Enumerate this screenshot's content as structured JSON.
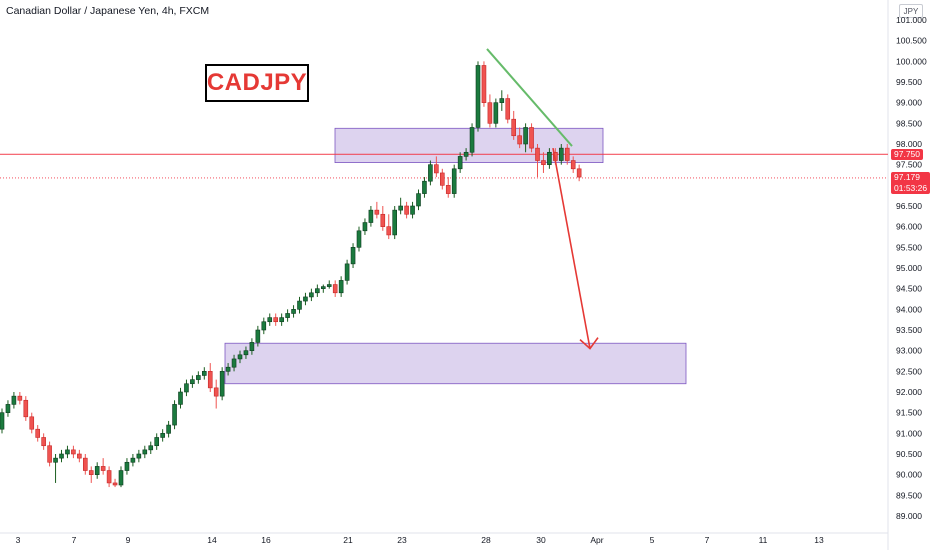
{
  "header": {
    "title": "Canadian Dollar / Japanese Yen, 4h, FXCM",
    "currency": "JPY"
  },
  "annotation": {
    "symbol_label": "CADJPY"
  },
  "price_tags": {
    "level": "97.750",
    "last_price": "97.179",
    "countdown": "01:53:26"
  },
  "colors": {
    "up": "#26a69a",
    "up_fill": "#1b7a3e",
    "down": "#ef5350",
    "zone_fill": "#b39ddb",
    "trendline": "#66bb6a",
    "arrow": "#e53935",
    "level_line": "#f23645"
  },
  "chart_data": {
    "type": "candlestick",
    "y_range": [
      88.8,
      101.3
    ],
    "y_ticks": [
      "101.000",
      "100.500",
      "100.000",
      "99.500",
      "99.000",
      "98.500",
      "98.000",
      "97.500",
      "97.000",
      "96.500",
      "96.000",
      "95.500",
      "95.000",
      "94.500",
      "94.000",
      "93.500",
      "93.000",
      "92.500",
      "92.000",
      "91.500",
      "91.000",
      "90.500",
      "90.000",
      "89.500",
      "89.000"
    ],
    "x_ticks": [
      "3",
      "7",
      "9",
      "14",
      "16",
      "21",
      "23",
      "28",
      "30",
      "Apr",
      "5",
      "7",
      "11",
      "13"
    ],
    "horizontal_level": 97.75,
    "last_price": 97.179,
    "zones": [
      {
        "from": 97.55,
        "to": 98.38
      },
      {
        "from": 92.2,
        "to": 93.18
      }
    ],
    "trendline": {
      "from_price": 100.3,
      "to_price": 97.95
    },
    "arrow": {
      "from_price": 97.9,
      "to_price": 93.05
    },
    "candles": [
      [
        91.1,
        91.6,
        91.0,
        91.5
      ],
      [
        91.5,
        91.8,
        91.4,
        91.7
      ],
      [
        91.7,
        92.0,
        91.6,
        91.9
      ],
      [
        91.9,
        92.0,
        91.7,
        91.8
      ],
      [
        91.8,
        91.9,
        91.3,
        91.4
      ],
      [
        91.4,
        91.5,
        91.0,
        91.1
      ],
      [
        91.1,
        91.2,
        90.8,
        90.9
      ],
      [
        90.9,
        91.0,
        90.6,
        90.7
      ],
      [
        90.7,
        90.8,
        90.2,
        90.3
      ],
      [
        90.3,
        90.5,
        89.8,
        90.4
      ],
      [
        90.4,
        90.6,
        90.3,
        90.5
      ],
      [
        90.5,
        90.7,
        90.4,
        90.6
      ],
      [
        90.6,
        90.7,
        90.4,
        90.5
      ],
      [
        90.5,
        90.6,
        90.3,
        90.4
      ],
      [
        90.4,
        90.5,
        90.0,
        90.1
      ],
      [
        90.1,
        90.2,
        89.8,
        90.0
      ],
      [
        90.0,
        90.3,
        89.9,
        90.2
      ],
      [
        90.2,
        90.4,
        90.0,
        90.1
      ],
      [
        90.1,
        90.2,
        89.7,
        89.8
      ],
      [
        89.8,
        89.9,
        89.7,
        89.75
      ],
      [
        89.75,
        90.2,
        89.7,
        90.1
      ],
      [
        90.1,
        90.4,
        90.0,
        90.3
      ],
      [
        90.3,
        90.5,
        90.2,
        90.4
      ],
      [
        90.4,
        90.6,
        90.3,
        90.5
      ],
      [
        90.5,
        90.7,
        90.4,
        90.6
      ],
      [
        90.6,
        90.8,
        90.5,
        90.7
      ],
      [
        90.7,
        91.0,
        90.6,
        90.9
      ],
      [
        90.9,
        91.1,
        90.8,
        91.0
      ],
      [
        91.0,
        91.3,
        90.9,
        91.2
      ],
      [
        91.2,
        91.8,
        91.1,
        91.7
      ],
      [
        91.7,
        92.1,
        91.6,
        92.0
      ],
      [
        92.0,
        92.3,
        91.9,
        92.2
      ],
      [
        92.2,
        92.4,
        92.1,
        92.3
      ],
      [
        92.3,
        92.5,
        92.2,
        92.4
      ],
      [
        92.4,
        92.6,
        92.3,
        92.5
      ],
      [
        92.5,
        92.7,
        92.0,
        92.1
      ],
      [
        92.1,
        92.3,
        91.6,
        91.9
      ],
      [
        91.9,
        92.6,
        91.8,
        92.5
      ],
      [
        92.5,
        92.7,
        92.4,
        92.6
      ],
      [
        92.6,
        92.9,
        92.5,
        92.8
      ],
      [
        92.8,
        93.0,
        92.7,
        92.9
      ],
      [
        92.9,
        93.1,
        92.8,
        93.0
      ],
      [
        93.0,
        93.3,
        92.9,
        93.2
      ],
      [
        93.2,
        93.6,
        93.1,
        93.5
      ],
      [
        93.5,
        93.8,
        93.4,
        93.7
      ],
      [
        93.7,
        93.9,
        93.6,
        93.8
      ],
      [
        93.8,
        93.9,
        93.6,
        93.7
      ],
      [
        93.7,
        93.9,
        93.6,
        93.8
      ],
      [
        93.8,
        94.0,
        93.7,
        93.9
      ],
      [
        93.9,
        94.1,
        93.8,
        94.0
      ],
      [
        94.0,
        94.3,
        93.9,
        94.2
      ],
      [
        94.2,
        94.4,
        94.1,
        94.3
      ],
      [
        94.3,
        94.5,
        94.2,
        94.4
      ],
      [
        94.4,
        94.6,
        94.3,
        94.5
      ],
      [
        94.5,
        94.6,
        94.4,
        94.55
      ],
      [
        94.55,
        94.7,
        94.5,
        94.6
      ],
      [
        94.6,
        94.7,
        94.3,
        94.4
      ],
      [
        94.4,
        94.8,
        94.3,
        94.7
      ],
      [
        94.7,
        95.2,
        94.6,
        95.1
      ],
      [
        95.1,
        95.6,
        95.0,
        95.5
      ],
      [
        95.5,
        96.0,
        95.4,
        95.9
      ],
      [
        95.9,
        96.2,
        95.8,
        96.1
      ],
      [
        96.1,
        96.5,
        96.0,
        96.4
      ],
      [
        96.4,
        96.6,
        96.2,
        96.3
      ],
      [
        96.3,
        96.5,
        95.9,
        96.0
      ],
      [
        96.0,
        96.3,
        95.7,
        95.8
      ],
      [
        95.8,
        96.5,
        95.7,
        96.4
      ],
      [
        96.4,
        96.7,
        96.3,
        96.5
      ],
      [
        96.5,
        96.6,
        96.2,
        96.3
      ],
      [
        96.3,
        96.6,
        96.2,
        96.5
      ],
      [
        96.5,
        96.9,
        96.4,
        96.8
      ],
      [
        96.8,
        97.2,
        96.7,
        97.1
      ],
      [
        97.1,
        97.6,
        97.0,
        97.5
      ],
      [
        97.5,
        97.7,
        97.2,
        97.3
      ],
      [
        97.3,
        97.4,
        96.9,
        97.0
      ],
      [
        97.0,
        97.2,
        96.7,
        96.8
      ],
      [
        96.8,
        97.5,
        96.7,
        97.4
      ],
      [
        97.4,
        97.8,
        97.3,
        97.7
      ],
      [
        97.7,
        97.9,
        97.6,
        97.8
      ],
      [
        97.8,
        98.5,
        97.7,
        98.4
      ],
      [
        98.4,
        100.0,
        98.3,
        99.9
      ],
      [
        99.9,
        100.0,
        98.9,
        99.0
      ],
      [
        99.0,
        99.2,
        98.4,
        98.5
      ],
      [
        98.5,
        99.1,
        98.4,
        99.0
      ],
      [
        99.0,
        99.3,
        98.8,
        99.1
      ],
      [
        99.1,
        99.2,
        98.5,
        98.6
      ],
      [
        98.6,
        98.8,
        98.1,
        98.2
      ],
      [
        98.2,
        98.4,
        97.9,
        98.0
      ],
      [
        98.0,
        98.5,
        97.8,
        98.4
      ],
      [
        98.4,
        98.5,
        97.8,
        97.9
      ],
      [
        97.9,
        98.0,
        97.2,
        97.6
      ],
      [
        97.6,
        97.8,
        97.3,
        97.5
      ],
      [
        97.5,
        97.9,
        97.4,
        97.8
      ],
      [
        97.8,
        97.9,
        97.5,
        97.6
      ],
      [
        97.6,
        98.0,
        97.5,
        97.9
      ],
      [
        97.9,
        98.0,
        97.5,
        97.6
      ],
      [
        97.6,
        97.7,
        97.3,
        97.4
      ],
      [
        97.4,
        97.5,
        97.1,
        97.2
      ]
    ]
  }
}
